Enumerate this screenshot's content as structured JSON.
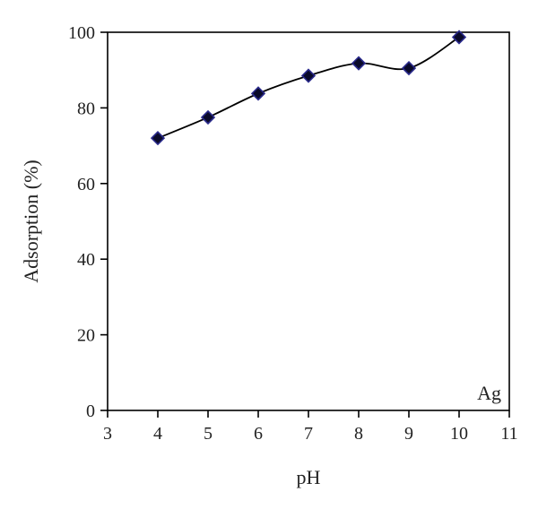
{
  "chart_data": {
    "type": "line",
    "xlabel": "pH",
    "ylabel": "Adsorption (%)",
    "xlim": [
      3,
      11
    ],
    "ylim": [
      0,
      100
    ],
    "x_ticks": [
      3,
      4,
      5,
      6,
      7,
      8,
      9,
      10,
      11
    ],
    "y_ticks": [
      0,
      20,
      40,
      60,
      80,
      100
    ],
    "grid": false,
    "legend": "none",
    "annotation": "Ag",
    "series": [
      {
        "x": [
          4,
          5,
          6,
          7,
          8,
          9,
          10
        ],
        "y": [
          72,
          77.5,
          83.8,
          88.5,
          91.8,
          90.5,
          98.7
        ],
        "line": "smooth",
        "marker": "diamond",
        "line_color": "#000000",
        "marker_fill": "#0a0a2a",
        "marker_edge": "#2a2a8c"
      }
    ]
  }
}
